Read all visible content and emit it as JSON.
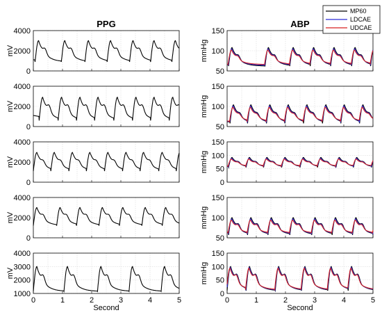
{
  "chart_data": {
    "type": "line",
    "xlabel": "Second",
    "x_ticks": [
      0,
      1,
      2,
      3,
      4,
      5
    ],
    "xlim": [
      0,
      5
    ],
    "grid": true,
    "legend": {
      "placement": "top-right",
      "entries": [
        {
          "name": "MP60",
          "color": "#000000"
        },
        {
          "name": "LDCAE",
          "color": "#2b2bd6"
        },
        {
          "name": "UDCAE",
          "color": "#d62020"
        }
      ]
    },
    "columns": [
      {
        "title": "PPG",
        "ylabel": "mV",
        "panels": [
          {
            "ylim": [
              0,
              4000
            ],
            "yticks": [
              0,
              2000,
              4000
            ],
            "series": [
              {
                "name": "PPG",
                "color": "#000000",
                "beats": [
                  0.06,
                  0.96,
                  1.77,
                  2.53,
                  3.3,
                  4.02,
                  4.75
                ],
                "baseline": 1300,
                "peak": 3000,
                "notch": 1800,
                "trough": 900
              }
            ]
          },
          {
            "ylim": [
              0,
              4000
            ],
            "yticks": [
              0,
              2000,
              4000
            ],
            "series": [
              {
                "name": "PPG",
                "color": "#000000",
                "beats": [
                  0.2,
                  0.85,
                  1.48,
                  2.1,
                  2.76,
                  3.4,
                  4.02,
                  4.66
                ],
                "baseline": 1400,
                "peak": 2900,
                "notch": 1700,
                "trough": 600
              }
            ]
          },
          {
            "ylim": [
              0,
              4000
            ],
            "yticks": [
              0,
              2000,
              4000
            ],
            "series": [
              {
                "name": "PPG",
                "color": "#000000",
                "beats": [
                  0.0,
                  0.6,
                  1.22,
                  1.82,
                  2.44,
                  3.06,
                  3.66,
                  4.3,
                  4.9
                ],
                "baseline": 1300,
                "peak": 2950,
                "notch": 1700,
                "trough": 1100
              }
            ]
          },
          {
            "ylim": [
              0,
              4000
            ],
            "yticks": [
              0,
              2000,
              4000
            ],
            "series": [
              {
                "name": "PPG",
                "color": "#000000",
                "beats": [
                  0.0,
                  0.8,
                  1.48,
                  2.25,
                  2.95,
                  3.72,
                  4.42
                ],
                "baseline": 1500,
                "peak": 3000,
                "notch": 1900,
                "trough": 1200
              }
            ]
          },
          {
            "ylim": [
              1000,
              4000
            ],
            "yticks": [
              1000,
              2000,
              3000,
              4000
            ],
            "series": [
              {
                "name": "PPG",
                "color": "#000000",
                "beats": [
                  0.0,
                  1.05,
                  2.2,
                  3.28,
                  4.38
                ],
                "baseline": 1700,
                "peak": 3000,
                "notch": 2000,
                "trough": 1150
              }
            ]
          }
        ]
      },
      {
        "title": "ABP",
        "ylabel": "mmHg",
        "panels": [
          {
            "ylim": [
              50,
              150
            ],
            "yticks": [
              50,
              100,
              150
            ],
            "series": [
              {
                "name": "MP60",
                "color": "#000000"
              },
              {
                "name": "LDCAE",
                "color": "#2b2bd6"
              },
              {
                "name": "UDCAE",
                "color": "#d62020"
              }
            ],
            "beats": [
              0.05,
              1.3,
              2.15,
              2.85,
              3.55,
              4.27,
              4.92
            ],
            "baseline": 68,
            "peak": 108,
            "notch": 78,
            "trough": 62
          },
          {
            "ylim": [
              50,
              150
            ],
            "yticks": [
              50,
              100,
              150
            ],
            "series": [
              {
                "name": "MP60",
                "color": "#000000"
              },
              {
                "name": "LDCAE",
                "color": "#2b2bd6"
              },
              {
                "name": "UDCAE",
                "color": "#d62020"
              }
            ],
            "beats": [
              0.1,
              0.7,
              1.35,
              1.98,
              2.62,
              3.27,
              3.9,
              4.54
            ],
            "baseline": 65,
            "peak": 104,
            "notch": 72,
            "trough": 58
          },
          {
            "ylim": [
              0,
              150
            ],
            "yticks": [
              0,
              50,
              100,
              150
            ],
            "series": [
              {
                "name": "MP60",
                "color": "#000000"
              },
              {
                "name": "LDCAE",
                "color": "#2b2bd6"
              },
              {
                "name": "UDCAE",
                "color": "#d62020"
              }
            ],
            "beats": [
              0.05,
              0.65,
              1.25,
              1.87,
              2.5,
              3.1,
              3.73,
              4.33,
              4.95
            ],
            "baseline": 62,
            "peak": 92,
            "notch": 68,
            "trough": 55
          },
          {
            "ylim": [
              50,
              150
            ],
            "yticks": [
              50,
              100,
              150
            ],
            "series": [
              {
                "name": "MP60",
                "color": "#000000"
              },
              {
                "name": "LDCAE",
                "color": "#2b2bd6"
              },
              {
                "name": "UDCAE",
                "color": "#d62020"
              }
            ],
            "beats": [
              0.05,
              0.7,
              1.4,
              2.15,
              2.9,
              3.6,
              4.3,
              5.0
            ],
            "baseline": 68,
            "peak": 100,
            "notch": 76,
            "trough": 57
          },
          {
            "ylim": [
              0,
              150
            ],
            "yticks": [
              0,
              50,
              100,
              150
            ],
            "series": [
              {
                "name": "MP60",
                "color": "#000000"
              },
              {
                "name": "LDCAE",
                "color": "#2b2bd6"
              },
              {
                "name": "UDCAE",
                "color": "#d62020"
              }
            ],
            "beats": [
              0.0,
              0.65,
              1.65,
              2.55,
              3.45,
              4.15
            ],
            "baseline": 60,
            "peak": 100,
            "notch": 55,
            "trough": 10
          }
        ]
      }
    ]
  }
}
